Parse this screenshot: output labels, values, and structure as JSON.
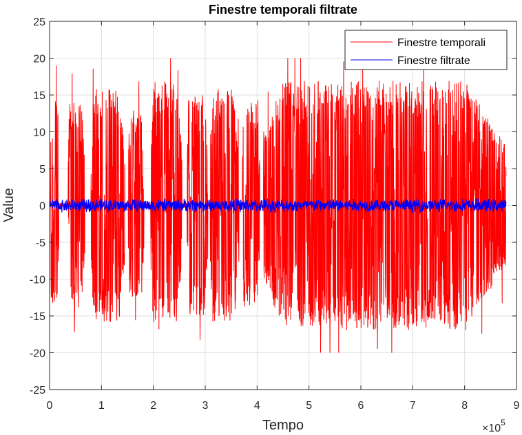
{
  "chart_data": {
    "type": "line",
    "title": "Finestre temporali filtrate",
    "xlabel": "Tempo",
    "ylabel": "Value",
    "x_multiplier_label": "×10",
    "x_multiplier_exponent": "5",
    "xlim": [
      0,
      9
    ],
    "ylim": [
      -25,
      25
    ],
    "x_ticks": [
      0,
      1,
      2,
      3,
      4,
      5,
      6,
      7,
      8,
      9
    ],
    "y_ticks": [
      -25,
      -20,
      -15,
      -10,
      -5,
      0,
      5,
      10,
      15,
      20,
      25
    ],
    "x_tick_labels": [
      "0",
      "1",
      "2",
      "3",
      "4",
      "5",
      "6",
      "7",
      "8",
      "9"
    ],
    "y_tick_labels": [
      "-25",
      "-20",
      "-15",
      "-10",
      "-5",
      "0",
      "5",
      "10",
      "15",
      "20",
      "25"
    ],
    "grid": true,
    "legend_position": "top-right",
    "series": [
      {
        "name": "Finestre temporali",
        "color": "#ff0000",
        "segments": [
          {
            "x_start": 0.02,
            "x_end": 0.18,
            "amplitude": 15
          },
          {
            "x_start": 0.36,
            "x_end": 0.68,
            "amplitude": 14
          },
          {
            "x_start": 0.8,
            "x_end": 1.45,
            "amplitude": 16
          },
          {
            "x_start": 1.52,
            "x_end": 1.82,
            "amplitude": 13
          },
          {
            "x_start": 1.95,
            "x_end": 2.55,
            "amplitude": 17
          },
          {
            "x_start": 2.65,
            "x_end": 3.05,
            "amplitude": 15
          },
          {
            "x_start": 3.1,
            "x_end": 3.65,
            "amplitude": 16
          },
          {
            "x_start": 3.72,
            "x_end": 4.05,
            "amplitude": 14
          },
          {
            "x_start": 4.12,
            "x_end": 8.8,
            "amplitude": 17
          }
        ],
        "peak_max": 20,
        "peak_min": -20
      },
      {
        "name": "Finestre filtrate",
        "color": "#0000ff",
        "amplitude": 1
      }
    ]
  }
}
